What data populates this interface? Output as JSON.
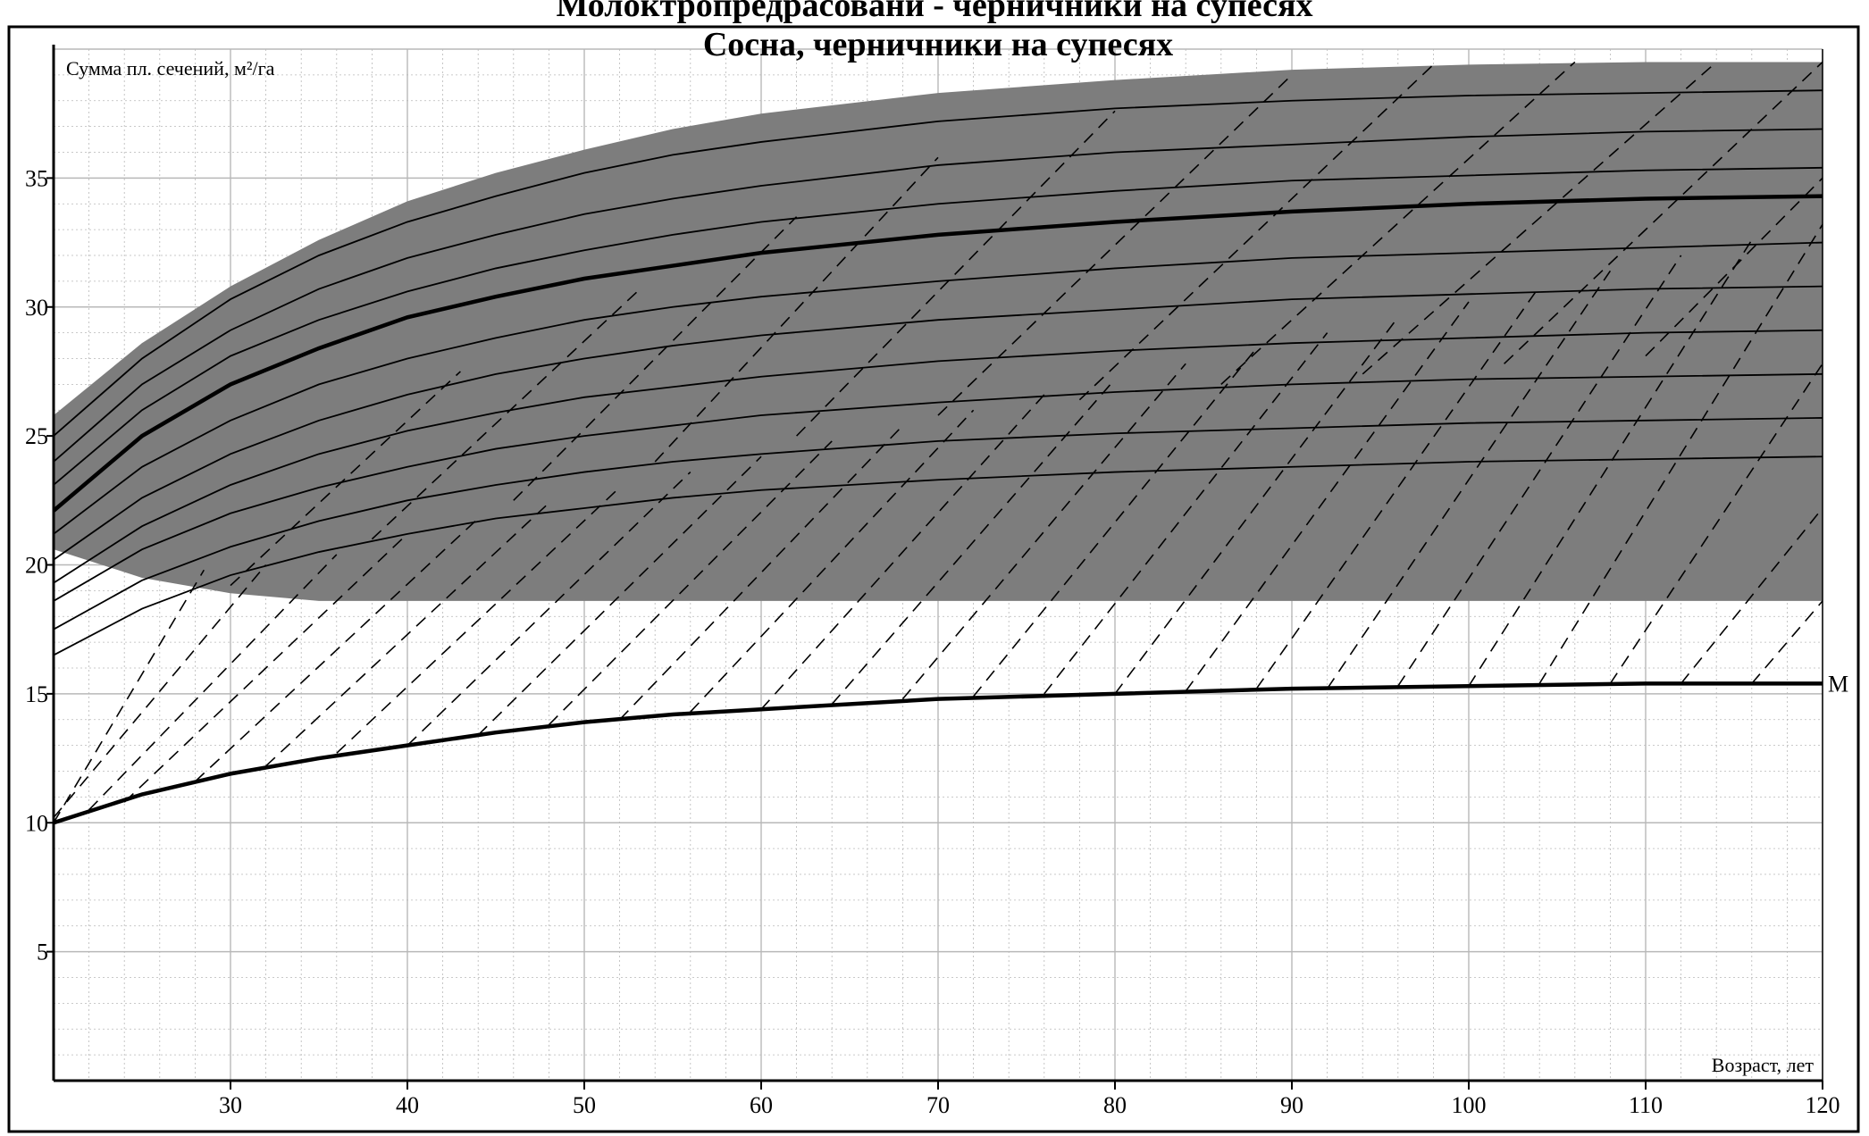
{
  "top_caption": "Молоктропредрасовани - черничники на супесях",
  "chart_data": {
    "type": "line",
    "title": "Сосна, черничники на супесях",
    "xlabel": "Возраст, лет",
    "ylabel": "Сумма пл. сечений, м²/га",
    "xlim": [
      20,
      120
    ],
    "ylim": [
      0,
      40
    ],
    "x_ticks": [
      30,
      40,
      50,
      60,
      70,
      80,
      90,
      100,
      110,
      120
    ],
    "y_ticks": [
      5,
      10,
      15,
      20,
      25,
      30,
      35
    ],
    "grid": true,
    "colors": {
      "band": "#7d7d7d",
      "line": "#000000",
      "dashed": "#000000",
      "grid": "#b8b8b8"
    },
    "band": {
      "x": [
        20,
        25,
        30,
        35,
        40,
        45,
        50,
        55,
        60,
        70,
        80,
        90,
        100,
        110,
        120
      ],
      "upper": [
        25.8,
        28.6,
        30.8,
        32.6,
        34.1,
        35.2,
        36.1,
        36.9,
        37.5,
        38.3,
        38.8,
        39.2,
        39.4,
        39.5,
        39.5
      ],
      "lower": [
        20.6,
        19.5,
        18.9,
        18.6,
        18.6,
        18.6,
        18.6,
        18.6,
        18.6,
        18.6,
        18.6,
        18.6,
        18.6,
        18.6,
        18.6
      ]
    },
    "series": [
      {
        "style": "bold",
        "x": [
          20,
          25,
          30,
          35,
          40,
          45,
          50,
          55,
          60,
          70,
          80,
          90,
          100,
          110,
          120
        ],
        "values": [
          22.1,
          25.0,
          27.0,
          28.4,
          29.6,
          30.4,
          31.1,
          31.6,
          32.1,
          32.8,
          33.3,
          33.7,
          34.0,
          34.2,
          34.3
        ]
      },
      {
        "name": "М",
        "style": "bold",
        "x": [
          20,
          25,
          30,
          35,
          40,
          45,
          50,
          55,
          60,
          70,
          80,
          90,
          100,
          110,
          120
        ],
        "values": [
          10.0,
          11.1,
          11.9,
          12.5,
          13.0,
          13.5,
          13.9,
          14.2,
          14.4,
          14.8,
          15.0,
          15.2,
          15.3,
          15.4,
          15.4
        ]
      },
      {
        "style": "thin",
        "x": [
          20,
          25,
          30,
          35,
          40,
          45,
          50,
          55,
          60,
          70,
          80,
          90,
          100,
          110,
          120
        ],
        "values": [
          25.0,
          28.0,
          30.3,
          32.0,
          33.3,
          34.3,
          35.2,
          35.9,
          36.4,
          37.2,
          37.7,
          38.0,
          38.2,
          38.3,
          38.4
        ]
      },
      {
        "style": "thin",
        "x": [
          20,
          25,
          30,
          35,
          40,
          45,
          50,
          55,
          60,
          70,
          80,
          90,
          100,
          110,
          120
        ],
        "values": [
          24.0,
          27.0,
          29.1,
          30.7,
          31.9,
          32.8,
          33.6,
          34.2,
          34.7,
          35.5,
          36.0,
          36.3,
          36.6,
          36.8,
          36.9
        ]
      },
      {
        "style": "thin",
        "x": [
          20,
          25,
          30,
          35,
          40,
          45,
          50,
          55,
          60,
          70,
          80,
          90,
          100,
          110,
          120
        ],
        "values": [
          23.1,
          26.0,
          28.1,
          29.5,
          30.6,
          31.5,
          32.2,
          32.8,
          33.3,
          34.0,
          34.5,
          34.9,
          35.1,
          35.3,
          35.4
        ]
      },
      {
        "style": "thin",
        "x": [
          20,
          25,
          30,
          35,
          40,
          45,
          50,
          55,
          60,
          70,
          80,
          90,
          100,
          110,
          120
        ],
        "values": [
          21.2,
          23.8,
          25.6,
          27.0,
          28.0,
          28.8,
          29.5,
          30.0,
          30.4,
          31.0,
          31.5,
          31.9,
          32.1,
          32.3,
          32.5
        ]
      },
      {
        "style": "thin",
        "x": [
          20,
          25,
          30,
          35,
          40,
          45,
          50,
          55,
          60,
          70,
          80,
          90,
          100,
          110,
          120
        ],
        "values": [
          20.2,
          22.6,
          24.3,
          25.6,
          26.6,
          27.4,
          28.0,
          28.5,
          28.9,
          29.5,
          29.9,
          30.3,
          30.5,
          30.7,
          30.8
        ]
      },
      {
        "style": "thin",
        "x": [
          20,
          25,
          30,
          35,
          40,
          45,
          50,
          55,
          60,
          70,
          80,
          90,
          100,
          110,
          120
        ],
        "values": [
          19.3,
          21.5,
          23.1,
          24.3,
          25.2,
          25.9,
          26.5,
          26.9,
          27.3,
          27.9,
          28.3,
          28.6,
          28.8,
          29.0,
          29.1
        ]
      },
      {
        "style": "thin",
        "x": [
          20,
          25,
          30,
          35,
          40,
          45,
          50,
          55,
          60,
          70,
          80,
          90,
          100,
          110,
          120
        ],
        "values": [
          18.6,
          20.6,
          22.0,
          23.0,
          23.8,
          24.5,
          25.0,
          25.4,
          25.8,
          26.3,
          26.7,
          27.0,
          27.2,
          27.3,
          27.4
        ]
      },
      {
        "style": "thin",
        "x": [
          20,
          25,
          30,
          35,
          40,
          45,
          50,
          55,
          60,
          70,
          80,
          90,
          100,
          110,
          120
        ],
        "values": [
          17.5,
          19.4,
          20.7,
          21.7,
          22.5,
          23.1,
          23.6,
          24.0,
          24.3,
          24.8,
          25.1,
          25.3,
          25.5,
          25.6,
          25.7
        ]
      },
      {
        "style": "thin",
        "x": [
          20,
          25,
          30,
          35,
          40,
          45,
          50,
          55,
          60,
          70,
          80,
          90,
          100,
          110,
          120
        ],
        "values": [
          16.5,
          18.3,
          19.6,
          20.5,
          21.2,
          21.8,
          22.2,
          22.6,
          22.9,
          23.3,
          23.6,
          23.8,
          24.0,
          24.1,
          24.2
        ]
      }
    ],
    "dashed_lines": [
      {
        "x": [
          20,
          28.5
        ],
        "values": [
          10.0,
          19.8
        ]
      },
      {
        "x": [
          20,
          32
        ],
        "values": [
          10.2,
          20.0
        ]
      },
      {
        "x": [
          22,
          36
        ],
        "values": [
          10.5,
          20.4
        ]
      },
      {
        "x": [
          24,
          40
        ],
        "values": [
          10.8,
          21.2
        ]
      },
      {
        "x": [
          28,
          44
        ],
        "values": [
          11.6,
          21.8
        ]
      },
      {
        "x": [
          32,
          48
        ],
        "values": [
          12.2,
          22.4
        ]
      },
      {
        "x": [
          36,
          52
        ],
        "values": [
          12.7,
          23.0
        ]
      },
      {
        "x": [
          40,
          56
        ],
        "values": [
          13.0,
          23.6
        ]
      },
      {
        "x": [
          44,
          60
        ],
        "values": [
          13.4,
          24.2
        ]
      },
      {
        "x": [
          48,
          64
        ],
        "values": [
          13.8,
          24.8
        ]
      },
      {
        "x": [
          52,
          68
        ],
        "values": [
          14.0,
          25.4
        ]
      },
      {
        "x": [
          56,
          72
        ],
        "values": [
          14.3,
          26.0
        ]
      },
      {
        "x": [
          60,
          76
        ],
        "values": [
          14.4,
          26.6
        ]
      },
      {
        "x": [
          64,
          80
        ],
        "values": [
          14.6,
          27.2
        ]
      },
      {
        "x": [
          68,
          84
        ],
        "values": [
          14.8,
          27.8
        ]
      },
      {
        "x": [
          72,
          88
        ],
        "values": [
          14.9,
          28.4
        ]
      },
      {
        "x": [
          76,
          92
        ],
        "values": [
          15.0,
          29.0
        ]
      },
      {
        "x": [
          80,
          96
        ],
        "values": [
          15.0,
          29.6
        ]
      },
      {
        "x": [
          84,
          100
        ],
        "values": [
          15.1,
          30.2
        ]
      },
      {
        "x": [
          88,
          104
        ],
        "values": [
          15.2,
          30.8
        ]
      },
      {
        "x": [
          92,
          108
        ],
        "values": [
          15.2,
          31.4
        ]
      },
      {
        "x": [
          96,
          112
        ],
        "values": [
          15.3,
          32.0
        ]
      },
      {
        "x": [
          100,
          116
        ],
        "values": [
          15.3,
          32.6
        ]
      },
      {
        "x": [
          104,
          120
        ],
        "values": [
          15.4,
          33.2
        ]
      },
      {
        "x": [
          108,
          120
        ],
        "values": [
          15.4,
          27.8
        ]
      },
      {
        "x": [
          112,
          120
        ],
        "values": [
          15.4,
          22.2
        ]
      },
      {
        "x": [
          116,
          120
        ],
        "values": [
          15.4,
          18.6
        ]
      },
      {
        "x": [
          30,
          43
        ],
        "values": [
          19.2,
          27.5
        ]
      },
      {
        "x": [
          38,
          53
        ],
        "values": [
          21.0,
          30.6
        ]
      },
      {
        "x": [
          46,
          62
        ],
        "values": [
          22.5,
          33.5
        ]
      },
      {
        "x": [
          54,
          70
        ],
        "values": [
          24.0,
          35.8
        ]
      },
      {
        "x": [
          62,
          80
        ],
        "values": [
          25.0,
          37.6
        ]
      },
      {
        "x": [
          70,
          90
        ],
        "values": [
          25.8,
          39.0
        ]
      },
      {
        "x": [
          78,
          98
        ],
        "values": [
          26.4,
          39.4
        ]
      },
      {
        "x": [
          86,
          106
        ],
        "values": [
          27.0,
          39.5
        ]
      },
      {
        "x": [
          94,
          114
        ],
        "values": [
          27.4,
          39.5
        ]
      },
      {
        "x": [
          102,
          120
        ],
        "values": [
          27.8,
          39.5
        ]
      },
      {
        "x": [
          110,
          120
        ],
        "values": [
          28.1,
          35.0
        ]
      }
    ]
  }
}
